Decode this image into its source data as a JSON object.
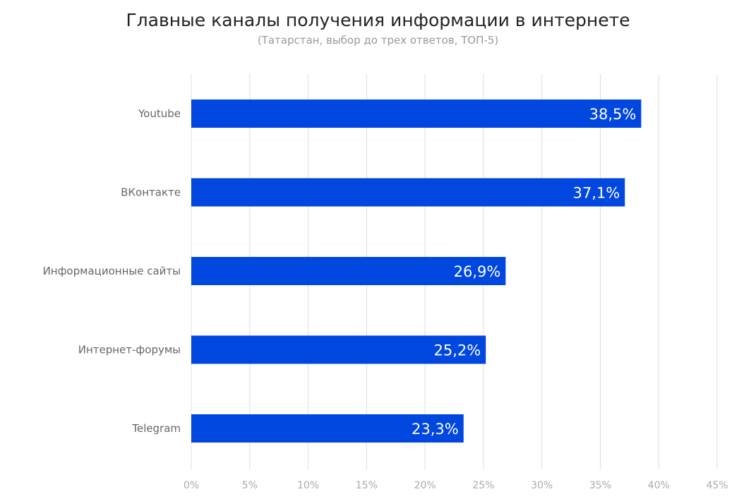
{
  "chart_data": {
    "type": "bar",
    "orientation": "horizontal",
    "title": "Главные каналы получения информации в интернете",
    "subtitle": "(Татарстан, выбор до трех ответов, ТОП-5)",
    "categories": [
      "Youtube",
      "ВКонтакте",
      "Информационные сайты",
      "Интернет-форумы",
      "Telegram"
    ],
    "values": [
      38.5,
      37.1,
      26.9,
      25.2,
      23.3
    ],
    "value_labels": [
      "38,5%",
      "37,1%",
      "26,9%",
      "25,2%",
      "23,3%"
    ],
    "xlim": [
      0,
      45
    ],
    "x_ticks": [
      0,
      5,
      10,
      15,
      20,
      25,
      30,
      35,
      40,
      45
    ],
    "x_tick_labels": [
      "0%",
      "5%",
      "10%",
      "15%",
      "20%",
      "25%",
      "30%",
      "35%",
      "40%",
      "45%"
    ],
    "grid": true,
    "legend": "none",
    "colors": {
      "bar": "#0047e0"
    }
  }
}
